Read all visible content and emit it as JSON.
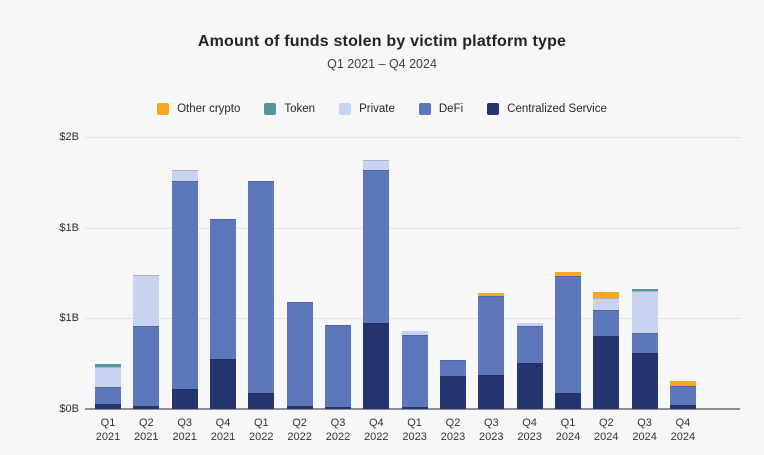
{
  "header": {
    "title": "Amount of funds stolen by victim platform type",
    "subtitle": "Q1 2021 – Q4 2024"
  },
  "legend": {
    "items": [
      {
        "label": "Other crypto",
        "color": "#f6a722"
      },
      {
        "label": "Token",
        "color": "#55969e"
      },
      {
        "label": "Private",
        "color": "#c8d3f0"
      },
      {
        "label": "DeFi",
        "color": "#5d77bb"
      },
      {
        "label": "Centralized Service",
        "color": "#24346d"
      }
    ]
  },
  "chart_data": {
    "type": "bar",
    "stacked": true,
    "title": "Amount of funds stolen by victim platform type",
    "subtitle": "Q1 2021 – Q4 2024",
    "units": "USD billions",
    "xlabel": "",
    "ylabel": "",
    "ylim_billions": [
      0,
      2
    ],
    "grid": true,
    "legend_position": "top",
    "y_axis": {
      "tick_labels_top_to_bottom": [
        "$2B",
        "$1B",
        "$1B",
        "$0B"
      ],
      "tick_values_top_to_bottom": [
        2,
        1.333,
        0.667,
        0
      ]
    },
    "categories": [
      "Q1 2021",
      "Q2 2021",
      "Q3 2021",
      "Q4 2021",
      "Q1 2022",
      "Q2 2022",
      "Q3 2022",
      "Q4 2022",
      "Q1 2023",
      "Q2 2023",
      "Q3 2023",
      "Q4 2023",
      "Q1 2024",
      "Q2 2024",
      "Q3 2024",
      "Q4 2024"
    ],
    "series": [
      {
        "name": "Centralized Service",
        "color": "#24346d",
        "values": [
          0.04,
          0.02,
          0.15,
          0.37,
          0.12,
          0.02,
          0.015,
          0.63,
          0.015,
          0.24,
          0.25,
          0.34,
          0.12,
          0.54,
          0.41,
          0.03
        ]
      },
      {
        "name": "DeFi",
        "color": "#5d77bb",
        "values": [
          0.12,
          0.59,
          1.53,
          1.03,
          1.56,
          0.77,
          0.6,
          1.13,
          0.53,
          0.12,
          0.58,
          0.27,
          0.86,
          0.19,
          0.15,
          0.14
        ]
      },
      {
        "name": "Private",
        "color": "#c8d3f0",
        "values": [
          0.15,
          0.375,
          0.075,
          0,
          0,
          0,
          0,
          0.07,
          0.03,
          0,
          0,
          0.02,
          0,
          0.09,
          0.31,
          0
        ]
      },
      {
        "name": "Token",
        "color": "#55969e",
        "values": [
          0.02,
          0,
          0,
          0,
          0,
          0,
          0,
          0,
          0,
          0,
          0,
          0,
          0,
          0,
          0.01,
          0
        ]
      },
      {
        "name": "Other crypto",
        "color": "#f6a722",
        "values": [
          0,
          0,
          0,
          0,
          0,
          0,
          0,
          0,
          0,
          0,
          0.02,
          0,
          0.025,
          0.04,
          0,
          0.04
        ]
      }
    ]
  }
}
